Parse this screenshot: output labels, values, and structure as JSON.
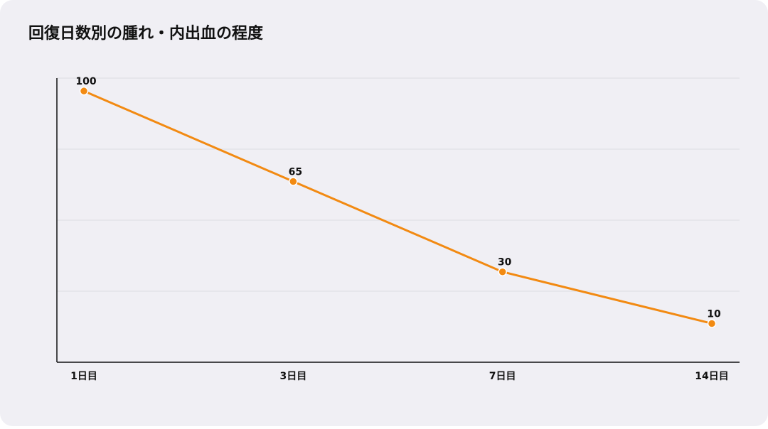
{
  "chart_data": {
    "type": "line",
    "title": "回復日数別の腫れ・内出血の程度",
    "categories": [
      "1日目",
      "3日目",
      "7日目",
      "14日目"
    ],
    "values": [
      100,
      65,
      30,
      10
    ],
    "color": "#f28a12",
    "ylim": [
      -5,
      105
    ],
    "yticks": [
      -5,
      22.5,
      50,
      77.5,
      105
    ],
    "grid": true
  }
}
